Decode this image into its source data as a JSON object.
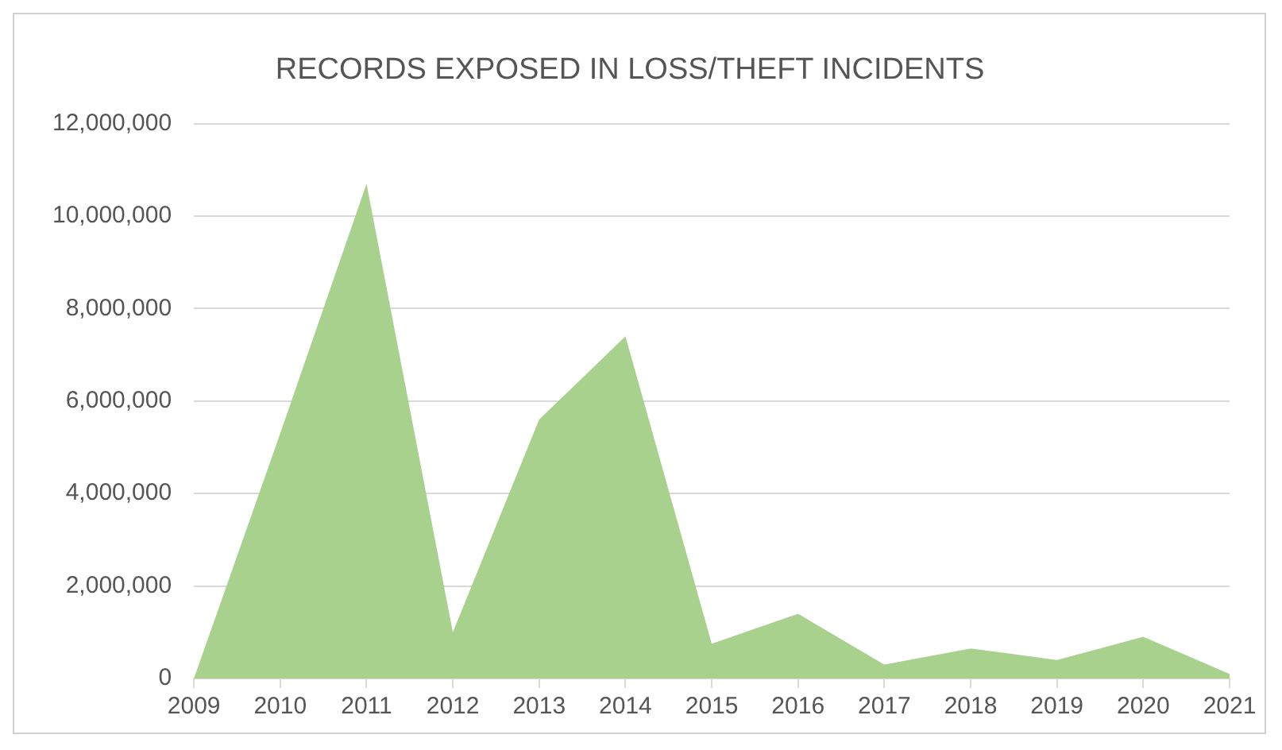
{
  "chart_data": {
    "type": "area",
    "title": "RECORDS EXPOSED IN LOSS/THEFT INCIDENTS",
    "categories": [
      "2009",
      "2010",
      "2011",
      "2012",
      "2013",
      "2014",
      "2015",
      "2016",
      "2017",
      "2018",
      "2019",
      "2020",
      "2021"
    ],
    "series": [
      {
        "color": "#a9d18e",
        "values": [
          0,
          5300000,
          10700000,
          1000000,
          5600000,
          7400000,
          750000,
          1400000,
          300000,
          650000,
          400000,
          900000,
          100000
        ]
      }
    ],
    "ylim": [
      0,
      12000000
    ],
    "yticks": [
      0,
      {
        "value": 2000000,
        "label": "2,000,000"
      },
      {
        "value": 4000000,
        "label": "4,000,000"
      },
      {
        "value": 6000000,
        "label": "6,000,000"
      },
      {
        "value": 8000000,
        "label": "8,000,000"
      },
      {
        "value": 10000000,
        "label": "10,000,000"
      },
      {
        "value": 12000000,
        "label": "12,000,000"
      }
    ],
    "grid": "y",
    "legend": false
  }
}
